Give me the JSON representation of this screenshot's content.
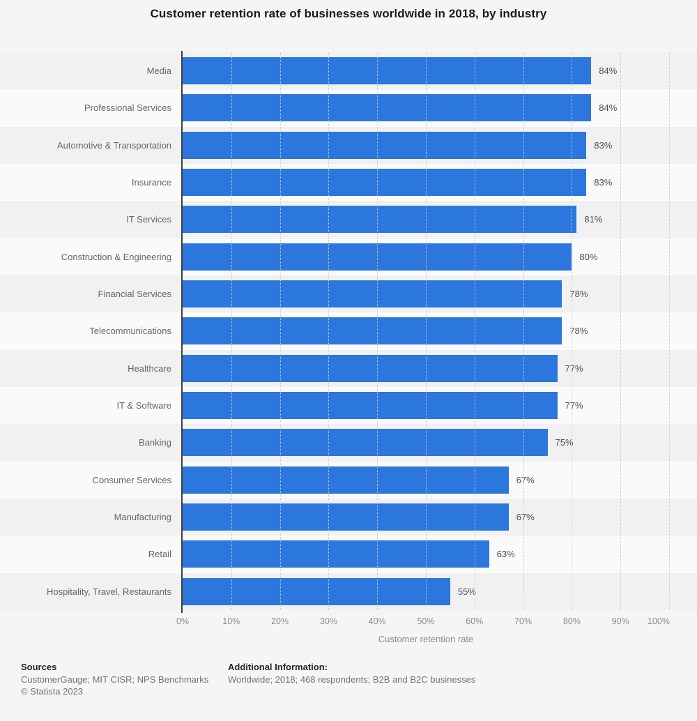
{
  "chart_data": {
    "type": "bar",
    "orientation": "horizontal",
    "title": "Customer retention rate of businesses worldwide in 2018, by industry",
    "categories": [
      "Media",
      "Professional Services",
      "Automotive & Transportation",
      "Insurance",
      "IT Services",
      "Construction & Engineering",
      "Financial Services",
      "Telecommunications",
      "Healthcare",
      "IT & Software",
      "Banking",
      "Consumer Services",
      "Manufacturing",
      "Retail",
      "Hospitality, Travel, Restaurants"
    ],
    "values": [
      84,
      84,
      83,
      83,
      81,
      80,
      78,
      78,
      77,
      77,
      75,
      67,
      67,
      63,
      55
    ],
    "value_labels": [
      "84%",
      "84%",
      "83%",
      "83%",
      "81%",
      "80%",
      "78%",
      "78%",
      "77%",
      "77%",
      "75%",
      "67%",
      "67%",
      "63%",
      "55%"
    ],
    "xlabel": "Customer retention rate",
    "xlim": [
      0,
      100
    ],
    "x_ticks": [
      "0%",
      "10%",
      "20%",
      "30%",
      "40%",
      "50%",
      "60%",
      "70%",
      "80%",
      "90%",
      "100%"
    ],
    "bar_color": "#2C77DE",
    "grid": "vertical-dotted",
    "legend": "none"
  },
  "footer": {
    "sources_label": "Sources",
    "sources_text": "CustomerGauge; MIT CISR; NPS Benchmarks",
    "copyright": "© Statista 2023",
    "additional_label": "Additional Information:",
    "additional_text": "Worldwide; 2018; 468 respondents; B2B and B2C businesses"
  }
}
